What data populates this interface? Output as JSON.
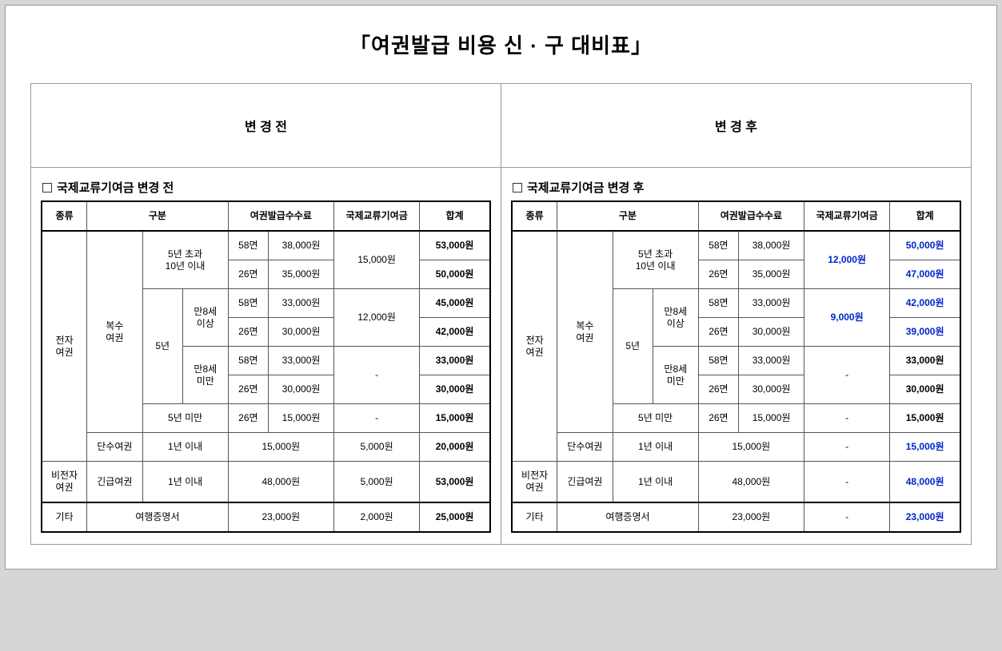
{
  "title": "「여권발급 비용 신 · 구 대비표」",
  "before": {
    "section_title": "변 경  전",
    "subtitle": "국제교류기여금 변경 전",
    "headers": [
      "종류",
      "구분",
      "여권발급수수료",
      "국제교류기여금",
      "합계"
    ],
    "labels": {
      "elec": "전자\n여권",
      "nonelec": "비전자\n여권",
      "etc": "기타",
      "multi": "복수\n여권",
      "single": "단수여권",
      "urgent": "긴급여권",
      "travel_doc": "여행증명서",
      "over5": "5년 초과\n10년 이내",
      "yr5": "5년",
      "under5": "5년 미만",
      "age8plus": "만8세\n이상",
      "age8minus": "만8세\n미만",
      "within1y": "1년 이내",
      "p58": "58면",
      "p26": "26면"
    },
    "rows": [
      {
        "fee": "38,000원",
        "contrib": "15,000원",
        "total": "53,000원"
      },
      {
        "fee": "35,000원",
        "contrib": "",
        "total": "50,000원"
      },
      {
        "fee": "33,000원",
        "contrib": "12,000원",
        "total": "45,000원"
      },
      {
        "fee": "30,000원",
        "contrib": "",
        "total": "42,000원"
      },
      {
        "fee": "33,000원",
        "contrib": "-",
        "total": "33,000원"
      },
      {
        "fee": "30,000원",
        "contrib": "",
        "total": "30,000원"
      },
      {
        "fee": "15,000원",
        "contrib": "-",
        "total": "15,000원"
      },
      {
        "fee": "15,000원",
        "contrib": "5,000원",
        "total": "20,000원"
      },
      {
        "fee": "48,000원",
        "contrib": "5,000원",
        "total": "53,000원"
      },
      {
        "fee": "23,000원",
        "contrib": "2,000원",
        "total": "25,000원"
      }
    ]
  },
  "after": {
    "section_title": "변 경  후",
    "subtitle": "국제교류기여금 변경 후",
    "headers": [
      "종류",
      "구분",
      "여권발급수수료",
      "국제교류기여금",
      "합계"
    ],
    "labels": {
      "elec": "전자\n여권",
      "nonelec": "비전자\n여권",
      "etc": "기타",
      "multi": "복수\n여권",
      "single": "단수여권",
      "urgent": "긴급여권",
      "travel_doc": "여행증명서",
      "over5": "5년 초과\n10년 이내",
      "yr5": "5년",
      "under5": "5년 미만",
      "age8plus": "만8세\n이상",
      "age8minus": "만8세\n미만",
      "within1y": "1년 이내",
      "p58": "58면",
      "p26": "26면"
    },
    "rows": [
      {
        "fee": "38,000원",
        "contrib": "12,000원",
        "total": "50,000원"
      },
      {
        "fee": "35,000원",
        "contrib": "",
        "total": "47,000원"
      },
      {
        "fee": "33,000원",
        "contrib": "9,000원",
        "total": "42,000원"
      },
      {
        "fee": "30,000원",
        "contrib": "",
        "total": "39,000원"
      },
      {
        "fee": "33,000원",
        "contrib": "-",
        "total": "33,000원"
      },
      {
        "fee": "30,000원",
        "contrib": "",
        "total": "30,000원"
      },
      {
        "fee": "15,000원",
        "contrib": "-",
        "total": "15,000원"
      },
      {
        "fee": "15,000원",
        "contrib": "-",
        "total": "15,000원"
      },
      {
        "fee": "48,000원",
        "contrib": "-",
        "total": "48,000원"
      },
      {
        "fee": "23,000원",
        "contrib": "-",
        "total": "23,000원"
      }
    ],
    "blue_totals": [
      0,
      1,
      2,
      3,
      7,
      8,
      9
    ],
    "blue_contribs": [
      0,
      2
    ]
  }
}
